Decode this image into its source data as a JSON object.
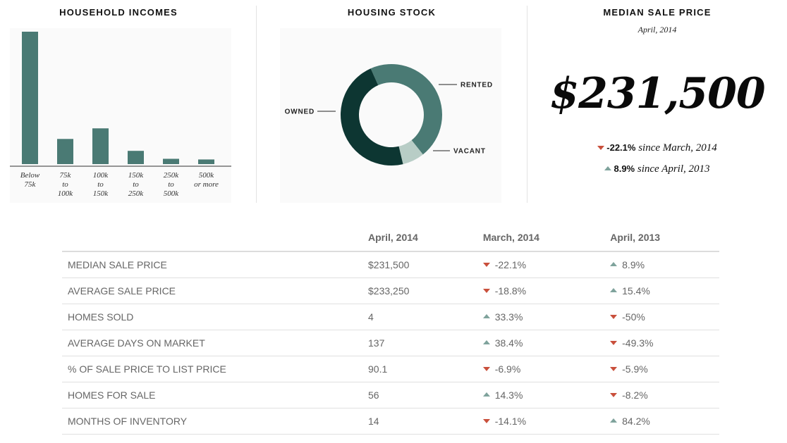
{
  "household": {
    "title": "HOUSEHOLD INCOMES",
    "bar_color": "#4a7a74",
    "chart_data": {
      "type": "bar",
      "categories": [
        [
          "Below",
          "75k"
        ],
        [
          "75k",
          "to",
          "100k"
        ],
        [
          "100k",
          "to",
          "150k"
        ],
        [
          "150k",
          "to",
          "250k"
        ],
        [
          "250k",
          "to",
          "500k"
        ],
        [
          "500k",
          "or more"
        ]
      ],
      "values": [
        100,
        19,
        27,
        10,
        4,
        3.5
      ],
      "ylim": [
        0,
        100
      ]
    }
  },
  "housing": {
    "title": "HOUSING STOCK",
    "chart_data": {
      "type": "pie",
      "slices": [
        {
          "label": "RENTED",
          "value": 46,
          "color": "#4a7a74"
        },
        {
          "label": "VACANT",
          "value": 7,
          "color": "#b8cdc6"
        },
        {
          "label": "OWNED",
          "value": 47,
          "color": "#0d3632"
        }
      ]
    }
  },
  "median": {
    "title": "MEDIAN SALE PRICE",
    "subtitle": "April, 2014",
    "price": "$231,500",
    "change1_value": "-22.1%",
    "change1_text": " since March, 2014",
    "change2_value": "8.9%",
    "change2_text": " since April, 2013"
  },
  "table": {
    "headers": [
      "",
      "April, 2014",
      "March, 2014",
      "April, 2013"
    ],
    "rows": [
      {
        "metric": "MEDIAN SALE PRICE",
        "current": "$231,500",
        "march": "-22.1%",
        "march_dir": "down",
        "year": "8.9%",
        "year_dir": "up"
      },
      {
        "metric": "AVERAGE SALE PRICE",
        "current": "$233,250",
        "march": "-18.8%",
        "march_dir": "down",
        "year": "15.4%",
        "year_dir": "up"
      },
      {
        "metric": "HOMES SOLD",
        "current": "4",
        "march": "33.3%",
        "march_dir": "up",
        "year": "-50%",
        "year_dir": "down"
      },
      {
        "metric": "AVERAGE DAYS ON MARKET",
        "current": "137",
        "march": "38.4%",
        "march_dir": "up",
        "year": "-49.3%",
        "year_dir": "down"
      },
      {
        "metric": "% OF SALE PRICE TO LIST PRICE",
        "current": "90.1",
        "march": "-6.9%",
        "march_dir": "down",
        "year": "-5.9%",
        "year_dir": "down"
      },
      {
        "metric": "HOMES FOR SALE",
        "current": "56",
        "march": "14.3%",
        "march_dir": "up",
        "year": "-8.2%",
        "year_dir": "down"
      },
      {
        "metric": "MONTHS OF INVENTORY",
        "current": "14",
        "march": "-14.1%",
        "march_dir": "down",
        "year": "84.2%",
        "year_dir": "up"
      }
    ]
  },
  "colors": {
    "down": "#c9503c",
    "up": "#7fa39c"
  }
}
